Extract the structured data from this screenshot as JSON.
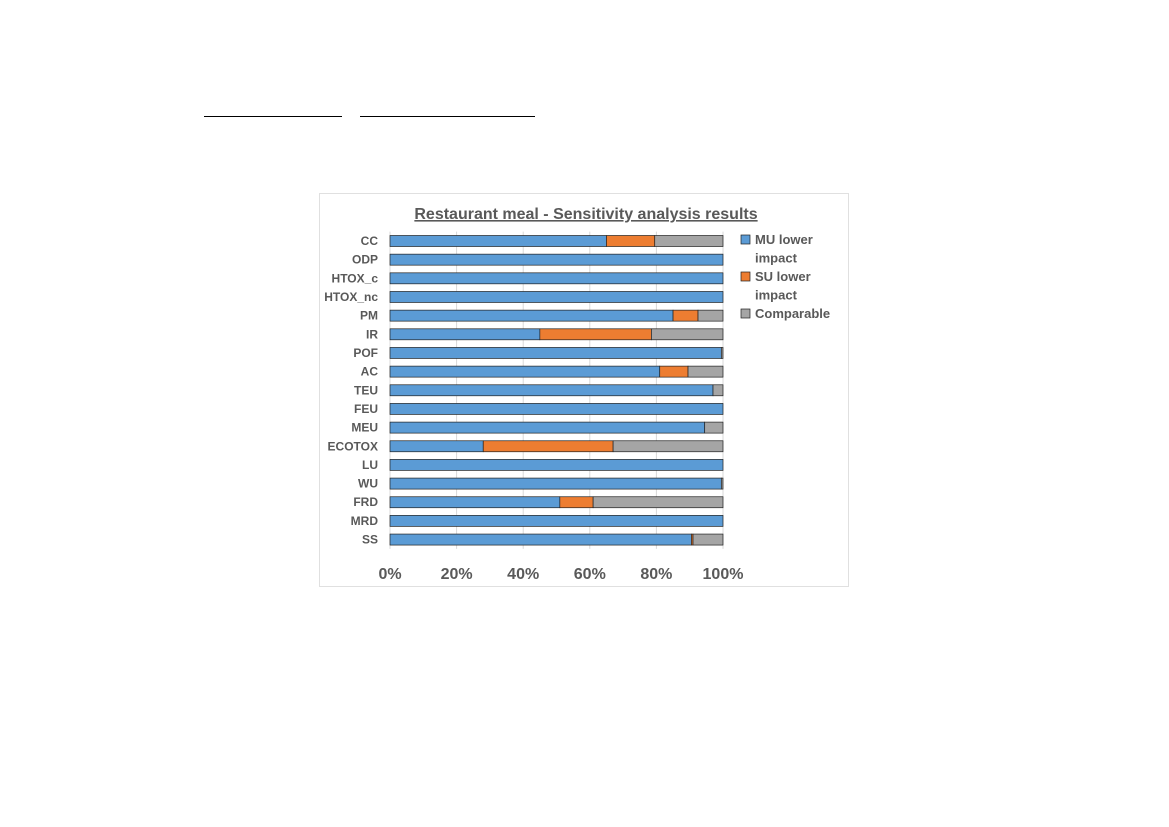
{
  "chart_data": {
    "type": "bar",
    "orientation": "horizontal",
    "stacking": "percent",
    "title": "Restaurant meal - Sensitivity analysis results",
    "categories": [
      "CC",
      "ODP",
      "HTOX_c",
      "HTOX_nc",
      "PM",
      "IR",
      "POF",
      "AC",
      "TEU",
      "FEU",
      "MEU",
      "ECOTOX",
      "LU",
      "WU",
      "FRD",
      "MRD",
      "SS"
    ],
    "series": [
      {
        "name": "MU lower impact",
        "color": "#5b9bd5",
        "values": [
          65,
          100,
          100,
          100,
          85,
          45,
          99.5,
          81,
          97,
          100,
          94.5,
          28,
          100,
          99.5,
          51,
          100,
          90.5
        ]
      },
      {
        "name": "SU lower impact",
        "color": "#ed7d31",
        "values": [
          14.5,
          0,
          0,
          0,
          7.5,
          33.5,
          0,
          8.5,
          0,
          0,
          0,
          39,
          0,
          0,
          10,
          0,
          0.5
        ]
      },
      {
        "name": "Comparable",
        "color": "#a5a5a5",
        "values": [
          20.5,
          0,
          0,
          0,
          7.5,
          21.5,
          0.5,
          10.5,
          3,
          0,
          5.5,
          33,
          0,
          0.5,
          39,
          0,
          9
        ]
      }
    ],
    "x_ticks": [
      "0%",
      "20%",
      "40%",
      "60%",
      "80%",
      "100%"
    ],
    "xlim": [
      0,
      100
    ],
    "legend_position": "right",
    "grid": true
  }
}
